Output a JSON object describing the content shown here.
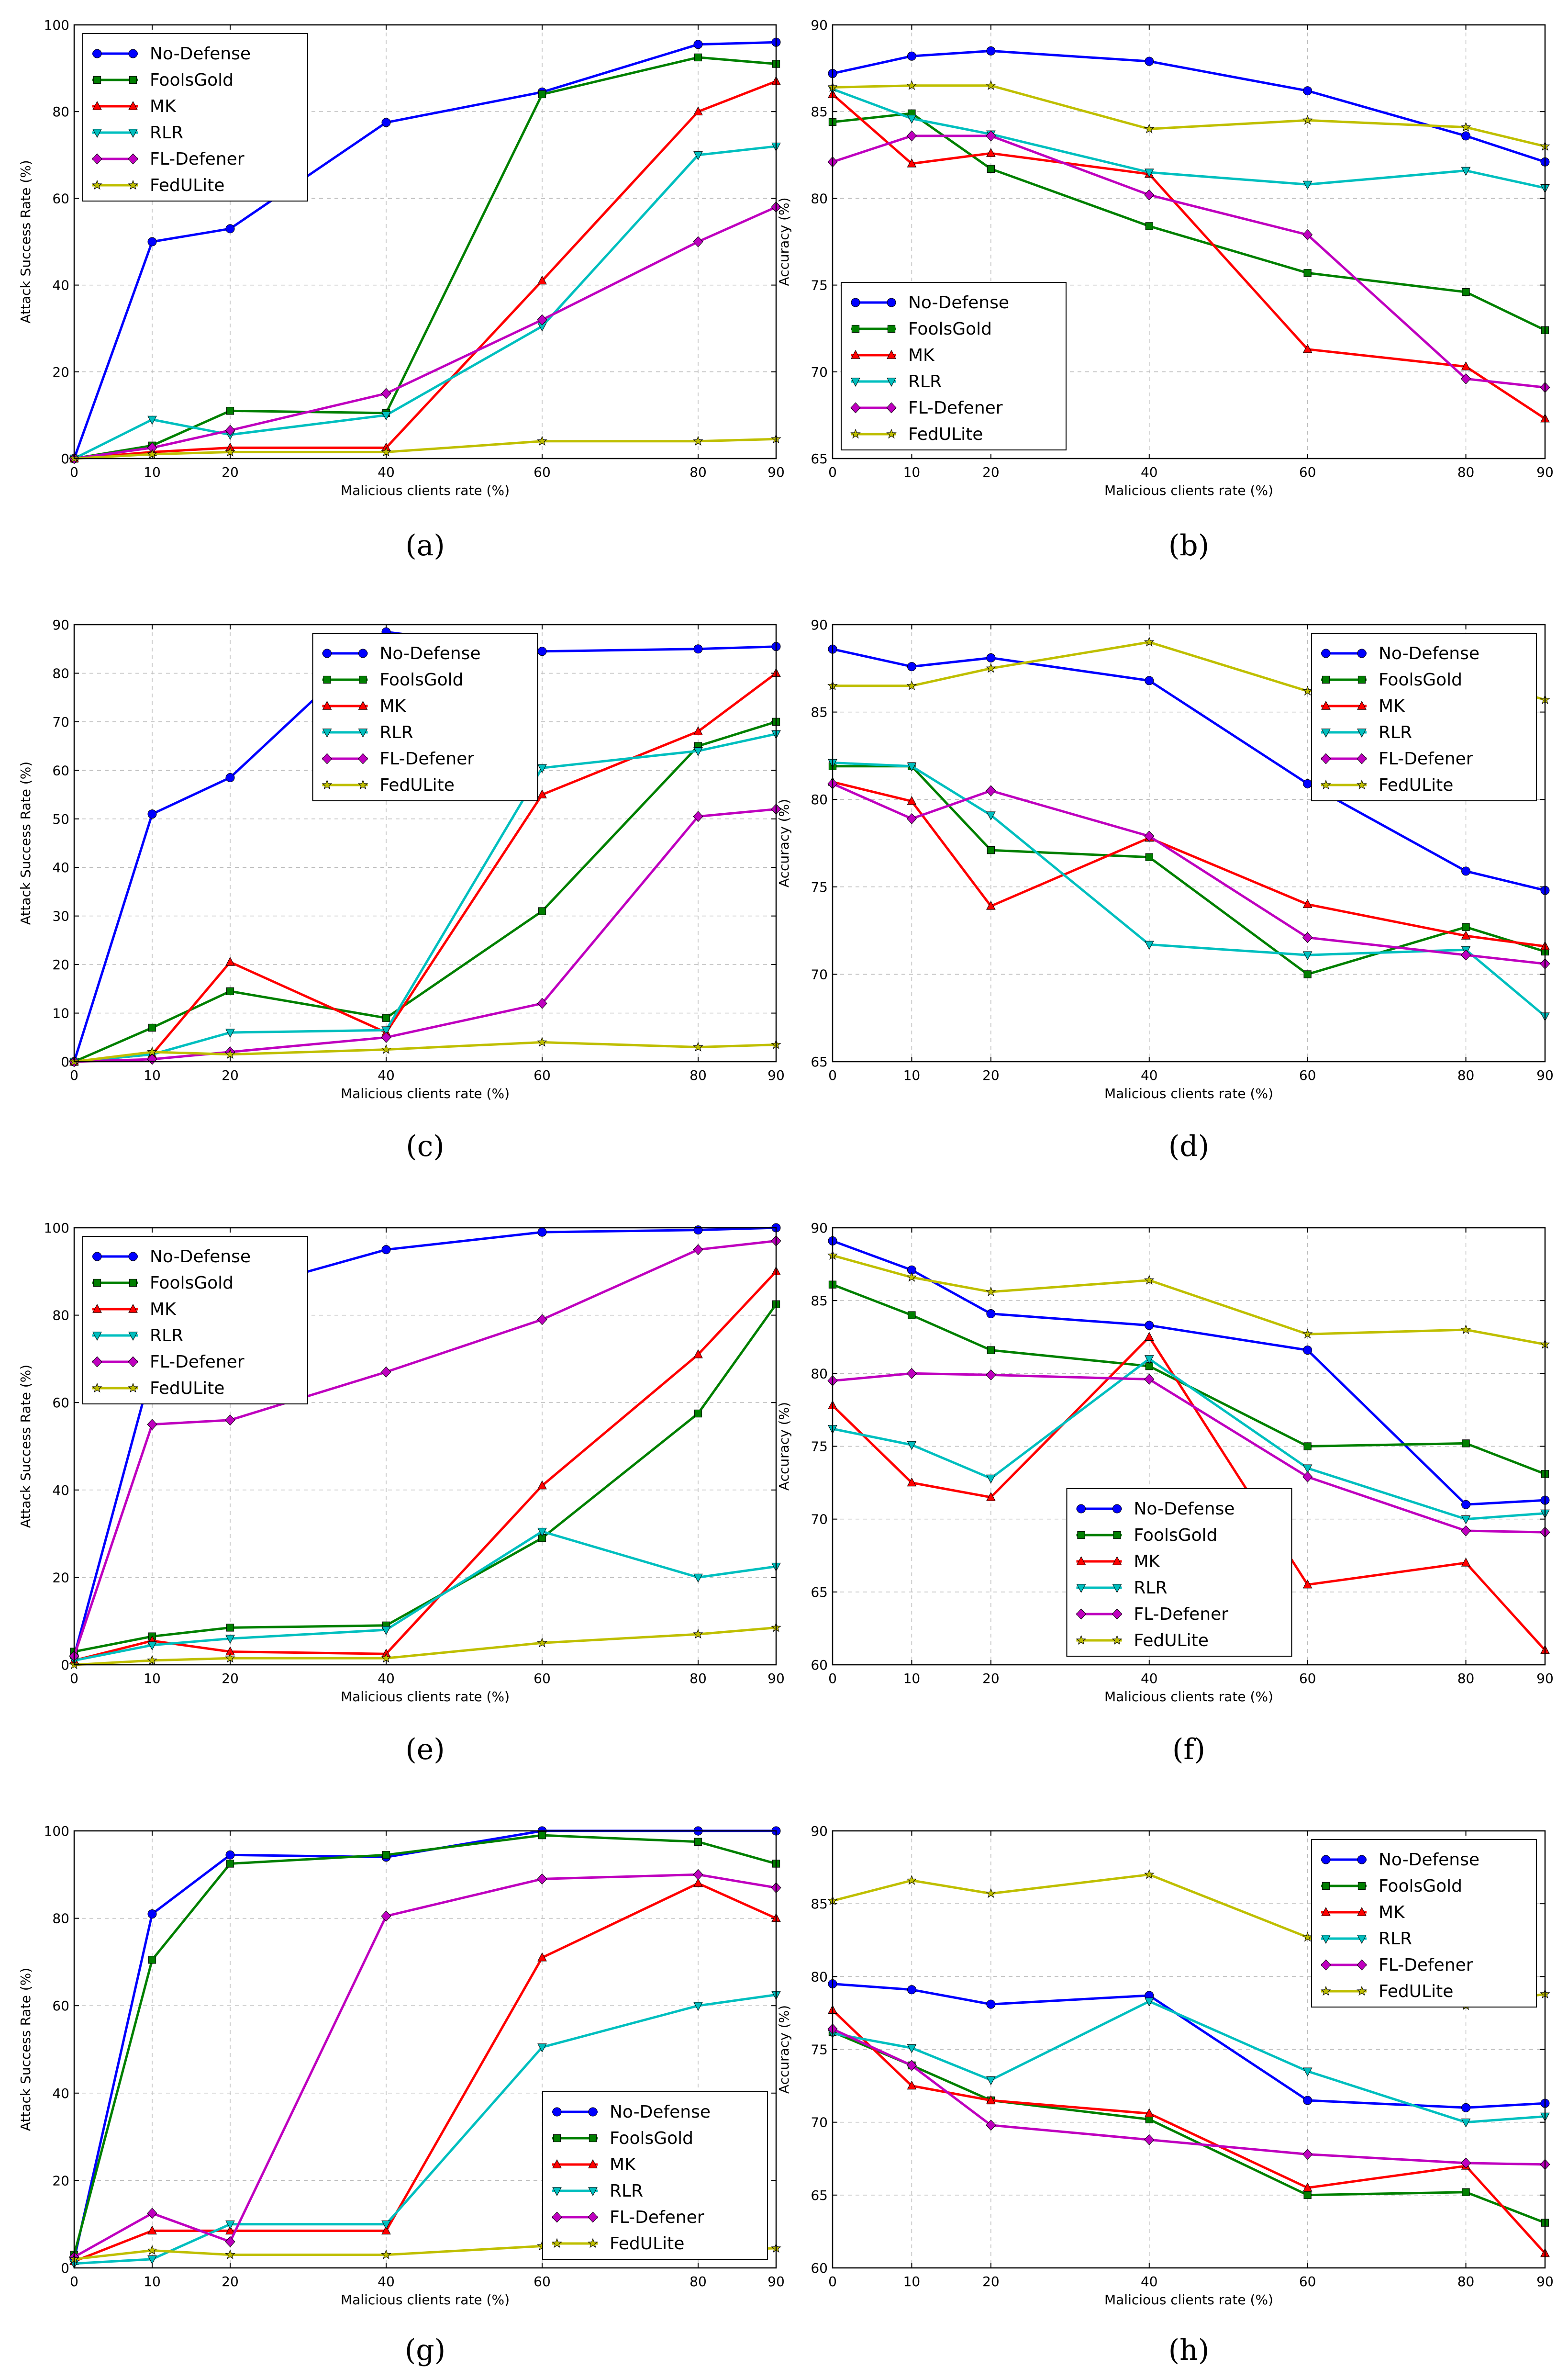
{
  "chart_data": [
    {
      "panel": "a",
      "caption": "(a)",
      "type": "line",
      "xlabel": "Malicious clients rate (%)",
      "ylabel": "Attack Success Rate (%)",
      "x": [
        0,
        10,
        20,
        40,
        60,
        80,
        90
      ],
      "xlim": [
        0,
        90
      ],
      "ylim": [
        0,
        100
      ],
      "yticks": [
        0,
        20,
        40,
        60,
        80,
        100
      ],
      "legend_position": "upper-left",
      "series": [
        {
          "name": "No-Defense",
          "values": [
            0,
            50,
            53,
            77.5,
            84.5,
            95.5,
            96
          ]
        },
        {
          "name": "FoolsGold",
          "values": [
            0,
            3,
            11,
            10.5,
            84,
            92.5,
            91
          ]
        },
        {
          "name": "MK",
          "values": [
            0,
            1.5,
            2.5,
            2.5,
            41,
            80,
            87
          ]
        },
        {
          "name": "RLR",
          "values": [
            0,
            9,
            5.5,
            10,
            30.5,
            70,
            72
          ]
        },
        {
          "name": "FL-Defener",
          "values": [
            0,
            2.5,
            6.5,
            15,
            32,
            50,
            58
          ]
        },
        {
          "name": "FedULite",
          "values": [
            0,
            1,
            1.5,
            1.5,
            4,
            4,
            4.5
          ]
        }
      ]
    },
    {
      "panel": "b",
      "caption": "(b)",
      "type": "line",
      "xlabel": "Malicious clients rate (%)",
      "ylabel": "Accuracy (%)",
      "x": [
        0,
        10,
        20,
        40,
        60,
        80,
        90
      ],
      "xlim": [
        0,
        90
      ],
      "ylim": [
        65,
        90
      ],
      "yticks": [
        65,
        70,
        75,
        80,
        85,
        90
      ],
      "legend_position": "lower-left",
      "series": [
        {
          "name": "No-Defense",
          "values": [
            87.2,
            88.2,
            88.5,
            87.9,
            86.2,
            83.6,
            82.1
          ]
        },
        {
          "name": "FoolsGold",
          "values": [
            84.4,
            84.9,
            81.7,
            78.4,
            75.7,
            74.6,
            72.4
          ]
        },
        {
          "name": "MK",
          "values": [
            86.0,
            82.0,
            82.6,
            81.4,
            71.3,
            70.3,
            67.3
          ]
        },
        {
          "name": "RLR",
          "values": [
            86.3,
            84.6,
            83.7,
            81.5,
            80.8,
            81.6,
            80.6
          ]
        },
        {
          "name": "FL-Defener",
          "values": [
            82.1,
            83.6,
            83.6,
            80.2,
            77.9,
            69.6,
            69.1
          ]
        },
        {
          "name": "FedULite",
          "values": [
            86.4,
            86.5,
            86.5,
            84.0,
            84.5,
            84.1,
            83.0
          ]
        }
      ]
    },
    {
      "panel": "c",
      "caption": "(c)",
      "type": "line",
      "xlabel": "Malicious clients rate (%)",
      "ylabel": "Attack Success Rate (%)",
      "x": [
        0,
        10,
        20,
        40,
        60,
        80,
        90
      ],
      "xlim": [
        0,
        90
      ],
      "ylim": [
        0,
        90
      ],
      "yticks": [
        0,
        10,
        20,
        30,
        40,
        50,
        60,
        70,
        80,
        90
      ],
      "legend_position": "upper-center",
      "series": [
        {
          "name": "No-Defense",
          "values": [
            0,
            51,
            58.5,
            88.5,
            84.5,
            85,
            85.5
          ]
        },
        {
          "name": "FoolsGold",
          "values": [
            0,
            7,
            14.5,
            9,
            31,
            65,
            70
          ]
        },
        {
          "name": "MK",
          "values": [
            0,
            1.5,
            20.5,
            6,
            55,
            68,
            80
          ]
        },
        {
          "name": "RLR",
          "values": [
            0,
            1.5,
            6,
            6.5,
            60.5,
            64,
            67.5
          ]
        },
        {
          "name": "FL-Defener",
          "values": [
            0,
            0.5,
            2,
            5,
            12,
            50.5,
            52
          ]
        },
        {
          "name": "FedULite",
          "values": [
            0,
            2,
            1.5,
            2.5,
            4,
            3,
            3.5
          ]
        }
      ]
    },
    {
      "panel": "d",
      "caption": "(d)",
      "type": "line",
      "xlabel": "Malicious clients rate (%)",
      "ylabel": "Accuracy (%)",
      "x": [
        0,
        10,
        20,
        40,
        60,
        80,
        90
      ],
      "xlim": [
        0,
        90
      ],
      "ylim": [
        65,
        90
      ],
      "yticks": [
        65,
        70,
        75,
        80,
        85,
        90
      ],
      "legend_position": "upper-right",
      "series": [
        {
          "name": "No-Defense",
          "values": [
            88.6,
            87.6,
            88.1,
            86.8,
            80.9,
            75.9,
            74.8
          ]
        },
        {
          "name": "FoolsGold",
          "values": [
            81.9,
            81.9,
            77.1,
            76.7,
            70.0,
            72.7,
            71.3
          ]
        },
        {
          "name": "MK",
          "values": [
            81.0,
            79.9,
            73.9,
            77.8,
            74.0,
            72.2,
            71.6
          ]
        },
        {
          "name": "RLR",
          "values": [
            82.1,
            81.9,
            79.1,
            71.7,
            71.1,
            71.4,
            67.6
          ]
        },
        {
          "name": "FL-Defener",
          "values": [
            80.9,
            78.9,
            80.5,
            77.9,
            72.1,
            71.1,
            70.6
          ]
        },
        {
          "name": "FedULite",
          "values": [
            86.5,
            86.5,
            87.5,
            89.0,
            86.2,
            87.0,
            85.7
          ]
        }
      ]
    },
    {
      "panel": "e",
      "caption": "(e)",
      "type": "line",
      "xlabel": "Malicious clients rate (%)",
      "ylabel": "Attack Success Rate (%)",
      "x": [
        0,
        10,
        20,
        40,
        60,
        80,
        90
      ],
      "xlim": [
        0,
        90
      ],
      "ylim": [
        0,
        100
      ],
      "yticks": [
        0,
        20,
        40,
        60,
        80,
        100
      ],
      "legend_position": "upper-left",
      "series": [
        {
          "name": "No-Defense",
          "values": [
            2,
            68,
            85,
            95,
            99,
            99.5,
            100
          ]
        },
        {
          "name": "FoolsGold",
          "values": [
            3,
            6.5,
            8.5,
            9,
            29,
            57.5,
            82.5
          ]
        },
        {
          "name": "MK",
          "values": [
            1,
            5.5,
            3,
            2.5,
            41,
            71,
            90
          ]
        },
        {
          "name": "RLR",
          "values": [
            1,
            4.5,
            6,
            8,
            30.5,
            20,
            22.5
          ]
        },
        {
          "name": "FL-Defener",
          "values": [
            2,
            55,
            56,
            67,
            79,
            95,
            97
          ]
        },
        {
          "name": "FedULite",
          "values": [
            0,
            1,
            1.5,
            1.5,
            5,
            7,
            8.5
          ]
        }
      ]
    },
    {
      "panel": "f",
      "caption": "(f)",
      "type": "line",
      "xlabel": "Malicious clients rate (%)",
      "ylabel": "Accuracy (%)",
      "x": [
        0,
        10,
        20,
        40,
        60,
        80,
        90
      ],
      "xlim": [
        0,
        90
      ],
      "ylim": [
        60,
        90
      ],
      "yticks": [
        60,
        65,
        70,
        75,
        80,
        85,
        90
      ],
      "legend_position": "lower-center",
      "series": [
        {
          "name": "No-Defense",
          "values": [
            89.1,
            87.1,
            84.1,
            83.3,
            81.6,
            71.0,
            71.3
          ]
        },
        {
          "name": "FoolsGold",
          "values": [
            86.1,
            84.0,
            81.6,
            80.5,
            75.0,
            75.2,
            73.1
          ]
        },
        {
          "name": "MK",
          "values": [
            77.8,
            72.5,
            71.5,
            82.5,
            65.5,
            67.0,
            61.0
          ]
        },
        {
          "name": "RLR",
          "values": [
            76.2,
            75.1,
            72.8,
            81.0,
            73.5,
            70.0,
            70.4
          ]
        },
        {
          "name": "FL-Defener",
          "values": [
            79.5,
            80.0,
            79.9,
            79.6,
            72.9,
            69.2,
            69.1
          ]
        },
        {
          "name": "FedULite",
          "values": [
            88.1,
            86.6,
            85.6,
            86.4,
            82.7,
            83.0,
            82.0
          ]
        }
      ]
    },
    {
      "panel": "g",
      "caption": "(g)",
      "type": "line",
      "xlabel": "Malicious clients rate (%)",
      "ylabel": "Attack Success Rate (%)",
      "x": [
        0,
        10,
        20,
        40,
        60,
        80,
        90
      ],
      "xlim": [
        0,
        90
      ],
      "ylim": [
        0,
        100
      ],
      "yticks": [
        0,
        20,
        40,
        60,
        80,
        100
      ],
      "legend_position": "lower-right",
      "series": [
        {
          "name": "No-Defense",
          "values": [
            2,
            81,
            94.5,
            94,
            100,
            100,
            100
          ]
        },
        {
          "name": "FoolsGold",
          "values": [
            3,
            70.5,
            92.5,
            94.5,
            99,
            97.5,
            92.5
          ]
        },
        {
          "name": "MK",
          "values": [
            1.5,
            8.5,
            8.5,
            8.5,
            71,
            88,
            80
          ]
        },
        {
          "name": "RLR",
          "values": [
            1,
            2,
            10,
            10,
            50.5,
            60,
            62.5
          ]
        },
        {
          "name": "FL-Defener",
          "values": [
            2.5,
            12.5,
            6,
            80.5,
            89,
            90,
            87
          ]
        },
        {
          "name": "FedULite",
          "values": [
            2,
            4,
            3,
            3,
            5,
            4,
            4.5
          ]
        }
      ]
    },
    {
      "panel": "h",
      "caption": "(h)",
      "type": "line",
      "xlabel": "Malicious clients rate (%)",
      "ylabel": "Accuracy (%)",
      "x": [
        0,
        10,
        20,
        40,
        60,
        80,
        90
      ],
      "xlim": [
        0,
        90
      ],
      "ylim": [
        60,
        90
      ],
      "yticks": [
        60,
        65,
        70,
        75,
        80,
        85,
        90
      ],
      "legend_position": "upper-right",
      "series": [
        {
          "name": "No-Defense",
          "values": [
            79.5,
            79.1,
            78.1,
            78.7,
            71.5,
            71.0,
            71.3
          ]
        },
        {
          "name": "FoolsGold",
          "values": [
            76.2,
            73.9,
            71.5,
            70.2,
            65.0,
            65.2,
            63.1
          ]
        },
        {
          "name": "MK",
          "values": [
            77.7,
            72.5,
            71.5,
            70.6,
            65.5,
            67.0,
            61.0
          ]
        },
        {
          "name": "RLR",
          "values": [
            76.1,
            75.1,
            72.9,
            78.3,
            73.5,
            70.0,
            70.4
          ]
        },
        {
          "name": "FL-Defener",
          "values": [
            76.4,
            73.9,
            69.8,
            68.8,
            67.8,
            67.2,
            67.1
          ]
        },
        {
          "name": "FedULite",
          "values": [
            85.2,
            86.6,
            85.7,
            87.0,
            82.7,
            78.0,
            78.8
          ]
        }
      ]
    }
  ],
  "style": {
    "series_colors": {
      "No-Defense": "#0000ff",
      "FoolsGold": "#008000",
      "MK": "#ff0000",
      "RLR": "#00bfbf",
      "FL-Defener": "#bf00bf",
      "FedULite": "#bfbf00"
    },
    "series_markers": {
      "No-Defense": "circle",
      "FoolsGold": "square",
      "MK": "triangle-up",
      "RLR": "triangle-down",
      "FL-Defener": "diamond",
      "FedULite": "star"
    },
    "grid_color": "#bbbbbb"
  }
}
